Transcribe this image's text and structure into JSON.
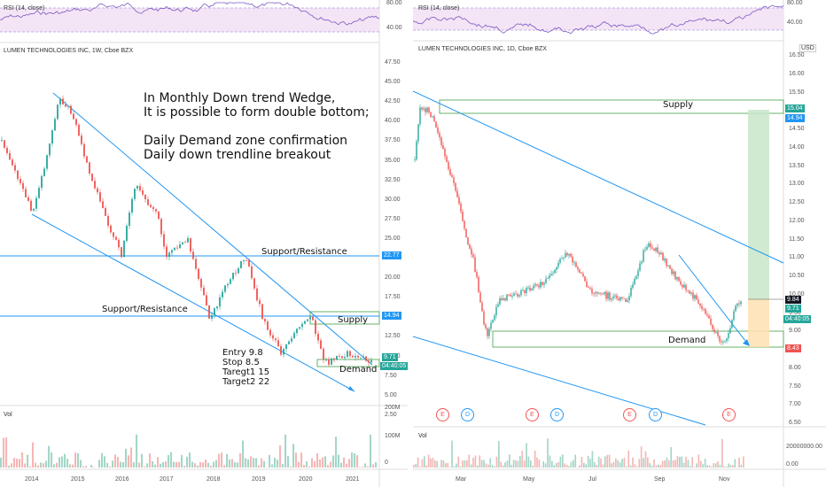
{
  "left": {
    "rsi_label": "RSI (14, close)",
    "rsi_ticks": [
      "80.00",
      "40.00"
    ],
    "title": "LUMEN TECHNOLOGIES INC, 1W, Cboe BZX",
    "price_ticks": [
      "47.50",
      "45.00",
      "42.50",
      "40.00",
      "37.50",
      "35.00",
      "32.50",
      "30.00",
      "27.50",
      "25.00",
      "22.50",
      "20.00",
      "17.50",
      "15.00",
      "12.50",
      "10.00",
      "7.50",
      "5.00",
      "2.50"
    ],
    "annotation": [
      "In Monthly Down trend Wedge,",
      "It is possible to form double bottom;",
      "",
      "Daily Demand zone confirmation",
      "Daily down trendline breakout"
    ],
    "support_resistance_1": "Support/Resistance",
    "support_resistance_2": "Support/Resistance",
    "supply": "Supply",
    "demand": "Demand",
    "trade_plan": [
      "Entry 9.8",
      "Stop 8.5",
      "Taregt1 15",
      "Target2  22"
    ],
    "price_tag_1": "22.77",
    "price_tag_2": "14.94",
    "price_tag_3": "9.71",
    "countdown": "04:40:05",
    "vol_label": "Vol",
    "vol_ticks": [
      "200M",
      "100M",
      "0"
    ],
    "time_labels": [
      "2014",
      "2015",
      "2016",
      "2017",
      "2018",
      "2019",
      "2020",
      "2021"
    ]
  },
  "right": {
    "rsi_label": "RSI (14, close)",
    "rsi_ticks": [
      "80.00",
      "40.00"
    ],
    "title": "LUMEN TECHNOLOGIES INC, 1D, Cboe BZX",
    "currency": "USD",
    "price_ticks": [
      "16.50",
      "16.00",
      "15.50",
      "15.00",
      "14.50",
      "14.00",
      "13.50",
      "13.00",
      "12.50",
      "12.00",
      "11.50",
      "11.00",
      "10.50",
      "10.00",
      "9.50",
      "9.00",
      "8.50",
      "8.00",
      "7.50",
      "7.00",
      "6.50"
    ],
    "supply": "Supply",
    "demand": "Demand",
    "price_tag_top": "15.04",
    "price_tag_2": "14.94",
    "price_tag_3": "9.84",
    "price_tag_4": "9.71",
    "countdown": "04:40:05",
    "price_tag_5": "8.43",
    "events": [
      "E",
      "D",
      "E",
      "D",
      "E",
      "D",
      "E"
    ],
    "vol_label": "Vol",
    "vol_ticks": [
      "20000000.00",
      "0.00"
    ],
    "time_labels": [
      "Mar",
      "May",
      "Jul",
      "Sep",
      "Nov"
    ]
  },
  "colors": {
    "trendline": "#2196f3",
    "candle_up": "#26a69a",
    "candle_down": "#ef5350",
    "rsi_line": "#7e57c2",
    "rsi_band": "#f3e5f5",
    "tag_blue": "#2196f3",
    "tag_teal": "#26a69a",
    "tag_red": "#ef5350",
    "tag_dark": "#131722",
    "zone_green": "#c8e6c9",
    "zone_orange": "#ffe0b2"
  }
}
